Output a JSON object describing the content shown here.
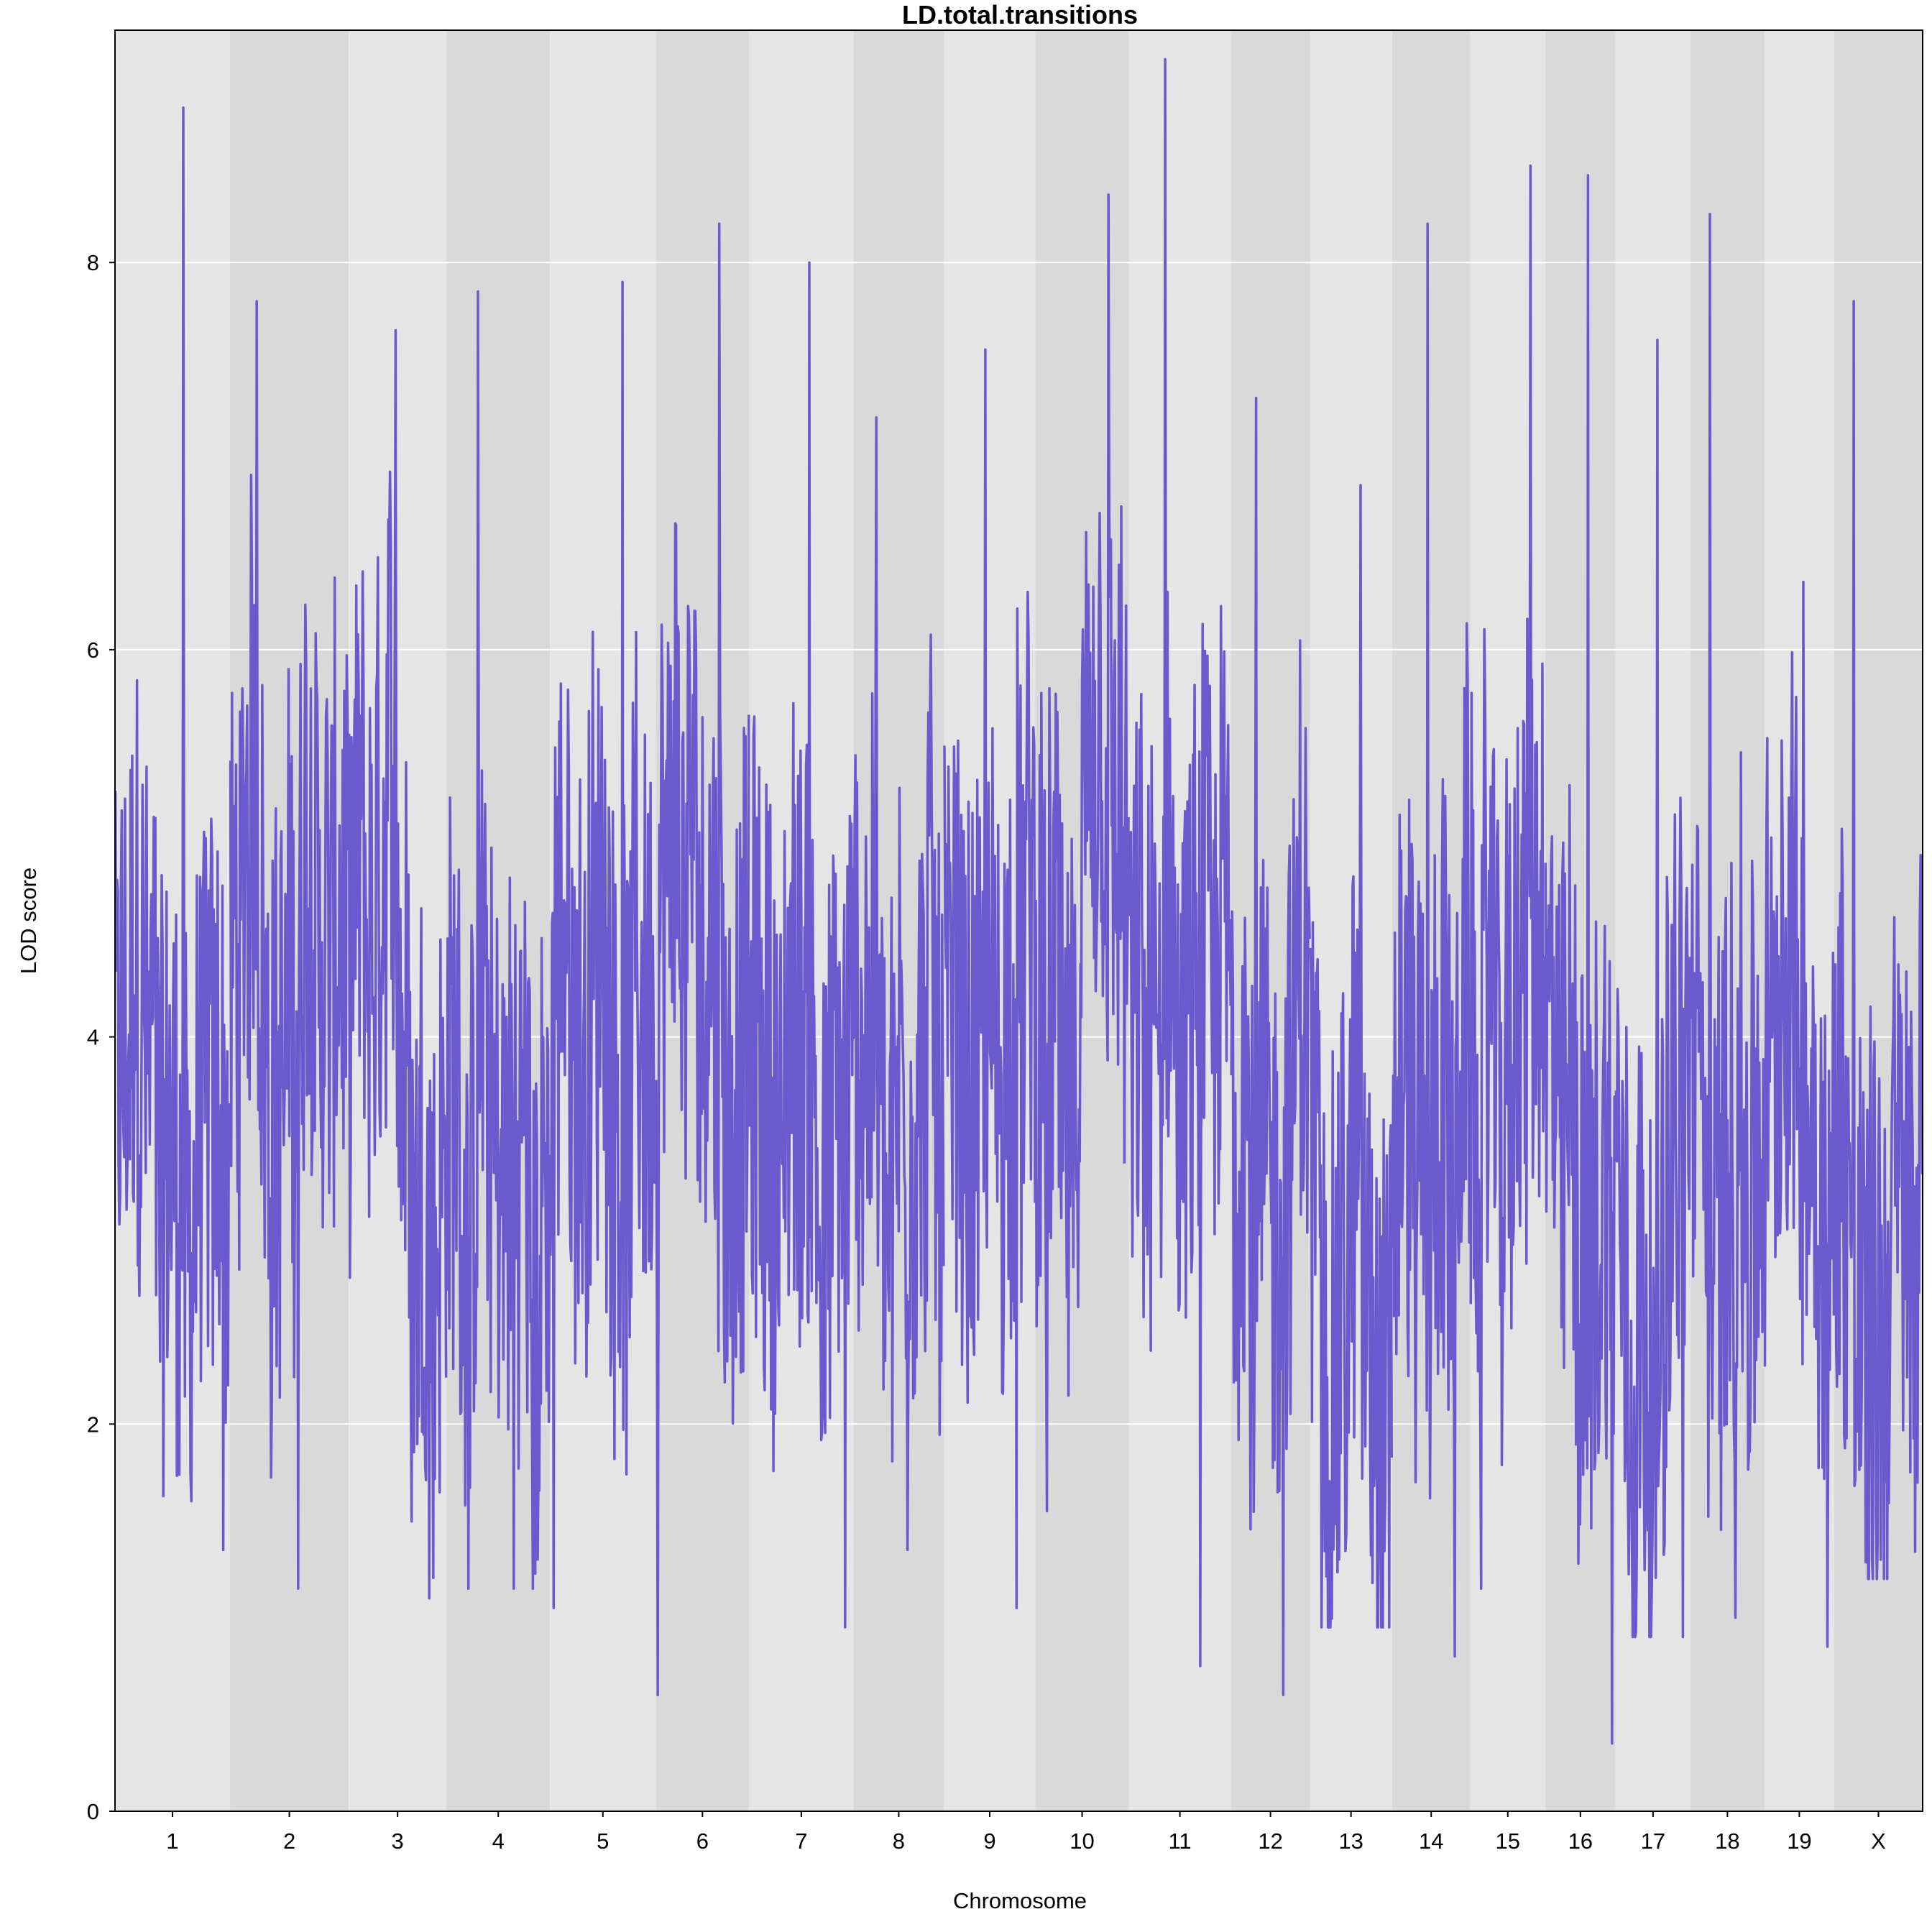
{
  "chart_data": {
    "type": "line",
    "title": "LD.total.transitions",
    "xlabel": "Chromosome",
    "ylabel": "LOD score",
    "ylim": [
      0,
      9.2
    ],
    "y_ticks": [
      "0",
      "2",
      "4",
      "6",
      "8"
    ],
    "grid": "horizontal",
    "line_color": "#6a5acd",
    "band_colors": [
      "#e5e5e5",
      "#d9d9d9"
    ],
    "chromosomes": [
      {
        "name": "1",
        "peak": 8.8,
        "min": 1.35
      },
      {
        "name": "2",
        "peak": 7.8,
        "min": 1.15
      },
      {
        "name": "3",
        "peak": 7.65,
        "min": 1.1
      },
      {
        "name": "4",
        "peak": 7.85,
        "min": 1.15
      },
      {
        "name": "5",
        "peak": 7.9,
        "min": 1.05
      },
      {
        "name": "6",
        "peak": 8.2,
        "min": 0.6
      },
      {
        "name": "7",
        "peak": 8.0,
        "min": 0.95
      },
      {
        "name": "8",
        "peak": 7.2,
        "min": 1.35
      },
      {
        "name": "9",
        "peak": 7.55,
        "min": 1.05
      },
      {
        "name": "10",
        "peak": 8.35,
        "min": 1.55
      },
      {
        "name": "11",
        "peak": 9.05,
        "min": 0.75
      },
      {
        "name": "12",
        "peak": 7.3,
        "min": 0.6
      },
      {
        "name": "13",
        "peak": 6.85,
        "min": 0.95
      },
      {
        "name": "14",
        "peak": 8.2,
        "min": 0.8
      },
      {
        "name": "15",
        "peak": 8.5,
        "min": 1.15
      },
      {
        "name": "16",
        "peak": 8.45,
        "min": 0.35
      },
      {
        "name": "17",
        "peak": 7.6,
        "min": 0.9
      },
      {
        "name": "18",
        "peak": 8.25,
        "min": 1.0
      },
      {
        "name": "19",
        "peak": 6.35,
        "min": 0.85
      },
      {
        "name": "X",
        "peak": 7.8,
        "min": 1.2
      }
    ]
  }
}
